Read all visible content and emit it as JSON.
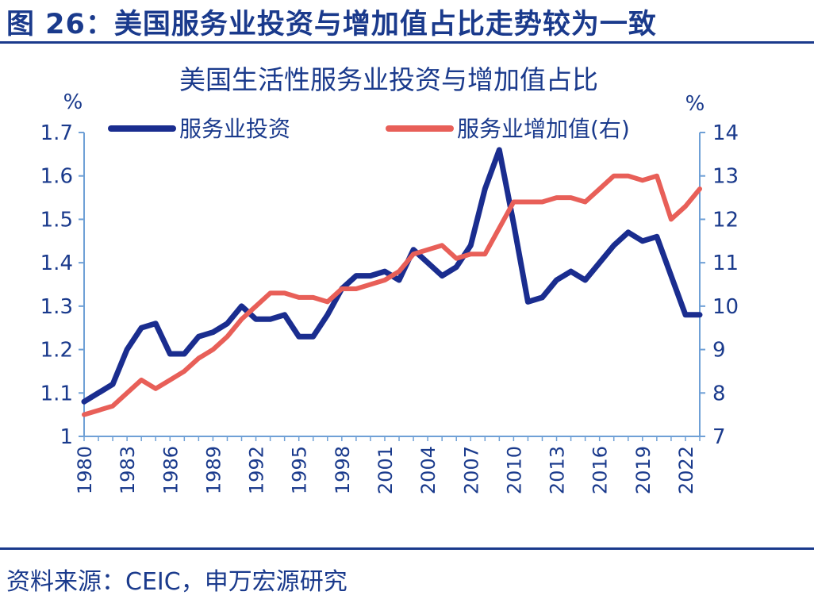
{
  "figure": {
    "title": "图 26：美国服务业投资与增加值占比走势较为一致",
    "source": "资料来源：CEIC，申万宏源研究",
    "colors": {
      "frame": "#1a3a8c",
      "text": "#1a3a8c"
    }
  },
  "chart_data": {
    "type": "line",
    "title": "美国生活性服务业投资与增加值占比",
    "left_unit": "%",
    "right_unit": "%",
    "ylim_left": [
      1.0,
      1.7
    ],
    "ylim_right": [
      7,
      14
    ],
    "yticks_left": [
      "1.7",
      "1.6",
      "1.5",
      "1.4",
      "1.3",
      "1.2",
      "1.1",
      "1"
    ],
    "yticks_right": [
      "14",
      "13",
      "12",
      "11",
      "10",
      "9",
      "8",
      "7"
    ],
    "xticks": [
      "1980",
      "1983",
      "1986",
      "1989",
      "1992",
      "1995",
      "1998",
      "2001",
      "2004",
      "2007",
      "2010",
      "2013",
      "2016",
      "2019",
      "2022"
    ],
    "grid": false,
    "legend_position": "top",
    "x": [
      1980,
      1981,
      1982,
      1983,
      1984,
      1985,
      1986,
      1987,
      1988,
      1989,
      1990,
      1991,
      1992,
      1993,
      1994,
      1995,
      1996,
      1997,
      1998,
      1999,
      2000,
      2001,
      2002,
      2003,
      2004,
      2005,
      2006,
      2007,
      2008,
      2009,
      2010,
      2011,
      2012,
      2013,
      2014,
      2015,
      2016,
      2017,
      2018,
      2019,
      2020,
      2021,
      2022,
      2023
    ],
    "series": [
      {
        "name": "服务业投资",
        "axis": "left",
        "color": "#1a2d8f",
        "values": [
          1.08,
          1.1,
          1.12,
          1.2,
          1.25,
          1.26,
          1.19,
          1.19,
          1.23,
          1.24,
          1.26,
          1.3,
          1.27,
          1.27,
          1.28,
          1.23,
          1.23,
          1.28,
          1.34,
          1.37,
          1.37,
          1.38,
          1.36,
          1.43,
          1.4,
          1.37,
          1.39,
          1.44,
          1.57,
          1.66,
          1.49,
          1.31,
          1.32,
          1.36,
          1.38,
          1.36,
          1.4,
          1.44,
          1.47,
          1.45,
          1.46,
          1.37,
          1.28,
          1.28
        ]
      },
      {
        "name": "服务业增加值(右)",
        "axis": "right",
        "color": "#e85f58",
        "values": [
          7.5,
          7.6,
          7.7,
          8.0,
          8.3,
          8.1,
          8.3,
          8.5,
          8.8,
          9.0,
          9.3,
          9.7,
          10.0,
          10.3,
          10.3,
          10.2,
          10.2,
          10.1,
          10.4,
          10.4,
          10.5,
          10.6,
          10.8,
          11.2,
          11.3,
          11.4,
          11.1,
          11.2,
          11.2,
          11.8,
          12.4,
          12.4,
          12.4,
          12.5,
          12.5,
          12.4,
          12.7,
          13.0,
          13.0,
          12.9,
          13.0,
          12.0,
          12.3,
          12.7
        ]
      }
    ]
  }
}
